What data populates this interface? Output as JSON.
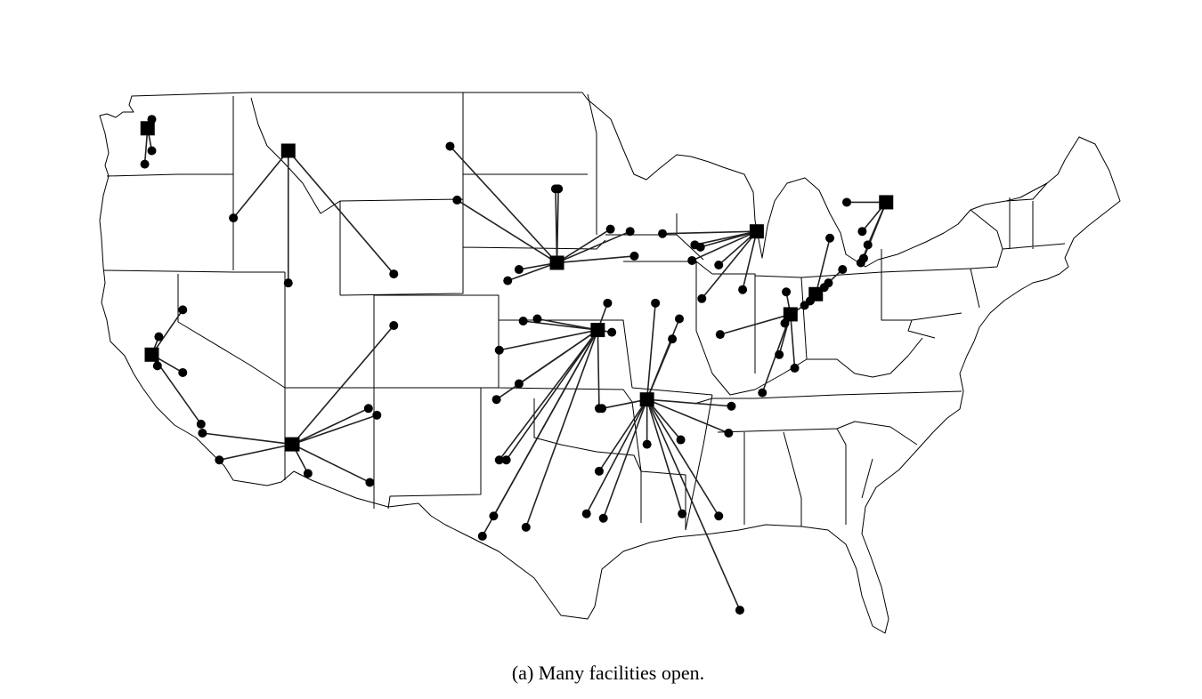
{
  "caption": "(a)  Many facilities open.",
  "colors": {
    "facility": "#000000",
    "customer": "#000000",
    "link": "#222222",
    "border": "#000000"
  },
  "facilities": [
    {
      "id": "F1",
      "lon": -122.3,
      "lat": 47.6
    },
    {
      "id": "F2",
      "lon": -112.3,
      "lat": 46.6
    },
    {
      "id": "F3",
      "lon": -122.0,
      "lat": 37.5
    },
    {
      "id": "F4",
      "lon": -112.0,
      "lat": 33.5
    },
    {
      "id": "F5",
      "lon": -93.2,
      "lat": 41.6
    },
    {
      "id": "F6",
      "lon": -90.3,
      "lat": 38.6
    },
    {
      "id": "F7",
      "lon": -86.8,
      "lat": 35.5
    },
    {
      "id": "F8",
      "lon": -79.0,
      "lat": 43.0
    },
    {
      "id": "F9",
      "lon": -76.6,
      "lat": 39.3
    },
    {
      "id": "F10",
      "lon": -74.8,
      "lat": 40.2
    },
    {
      "id": "F11",
      "lon": -69.8,
      "lat": 44.3
    }
  ],
  "customers": [
    {
      "f": "F1",
      "lon": -122.0,
      "lat": 48.0
    },
    {
      "f": "F1",
      "lon": -122.0,
      "lat": 46.6
    },
    {
      "f": "F1",
      "lon": -122.5,
      "lat": 46.0
    },
    {
      "f": "F2",
      "lon": -116.2,
      "lat": 43.6
    },
    {
      "f": "F2",
      "lon": -112.3,
      "lat": 40.7
    },
    {
      "f": "F2",
      "lon": -104.8,
      "lat": 41.1
    },
    {
      "f": "F3",
      "lon": -121.5,
      "lat": 38.3
    },
    {
      "f": "F3",
      "lon": -119.8,
      "lat": 39.5
    },
    {
      "f": "F3",
      "lon": -121.6,
      "lat": 37.0
    },
    {
      "f": "F3",
      "lon": -119.8,
      "lat": 36.7
    },
    {
      "f": "F3",
      "lon": -118.5,
      "lat": 34.4
    },
    {
      "f": "F4",
      "lon": -118.4,
      "lat": 34.0
    },
    {
      "f": "F4",
      "lon": -117.2,
      "lat": 32.8
    },
    {
      "f": "F4",
      "lon": -104.8,
      "lat": 38.8
    },
    {
      "f": "F4",
      "lon": -106.6,
      "lat": 35.1
    },
    {
      "f": "F4",
      "lon": -106.0,
      "lat": 34.8
    },
    {
      "f": "F4",
      "lon": -106.5,
      "lat": 31.8
    },
    {
      "f": "F4",
      "lon": -110.9,
      "lat": 32.2
    },
    {
      "f": "F5",
      "lon": -100.8,
      "lat": 46.8
    },
    {
      "f": "F5",
      "lon": -100.3,
      "lat": 44.4
    },
    {
      "f": "F5",
      "lon": -93.3,
      "lat": 44.9
    },
    {
      "f": "F5",
      "lon": -93.1,
      "lat": 44.9
    },
    {
      "f": "F5",
      "lon": -89.4,
      "lat": 43.1
    },
    {
      "f": "F5",
      "lon": -88.0,
      "lat": 43.0
    },
    {
      "f": "F5",
      "lon": -87.7,
      "lat": 41.9
    },
    {
      "f": "F5",
      "lon": -95.9,
      "lat": 41.3
    },
    {
      "f": "F5",
      "lon": -96.7,
      "lat": 40.8
    },
    {
      "f": "F6",
      "lon": -94.6,
      "lat": 39.1
    },
    {
      "f": "F6",
      "lon": -95.6,
      "lat": 39.0
    },
    {
      "f": "F6",
      "lon": -89.6,
      "lat": 39.8
    },
    {
      "f": "F6",
      "lon": -89.3,
      "lat": 38.5
    },
    {
      "f": "F6",
      "lon": -97.3,
      "lat": 37.7
    },
    {
      "f": "F6",
      "lon": -97.5,
      "lat": 35.5
    },
    {
      "f": "F6",
      "lon": -95.9,
      "lat": 36.2
    },
    {
      "f": "F6",
      "lon": -90.2,
      "lat": 35.1
    },
    {
      "f": "F6",
      "lon": -96.8,
      "lat": 32.8
    },
    {
      "f": "F6",
      "lon": -97.3,
      "lat": 32.8
    },
    {
      "f": "F6",
      "lon": -97.7,
      "lat": 30.3
    },
    {
      "f": "F6",
      "lon": -98.5,
      "lat": 29.4
    },
    {
      "f": "F6",
      "lon": -95.4,
      "lat": 29.8
    },
    {
      "f": "F7",
      "lon": -86.2,
      "lat": 39.8
    },
    {
      "f": "F7",
      "lon": -84.5,
      "lat": 39.1
    },
    {
      "f": "F7",
      "lon": -85.0,
      "lat": 38.2
    },
    {
      "f": "F7",
      "lon": -90.0,
      "lat": 35.1
    },
    {
      "f": "F7",
      "lon": -80.8,
      "lat": 35.2
    },
    {
      "f": "F7",
      "lon": -81.0,
      "lat": 34.0
    },
    {
      "f": "F7",
      "lon": -84.4,
      "lat": 33.7
    },
    {
      "f": "F7",
      "lon": -86.8,
      "lat": 33.5
    },
    {
      "f": "F7",
      "lon": -90.2,
      "lat": 32.3
    },
    {
      "f": "F7",
      "lon": -91.1,
      "lat": 30.4
    },
    {
      "f": "F7",
      "lon": -89.9,
      "lat": 30.2
    },
    {
      "f": "F7",
      "lon": -84.3,
      "lat": 30.4
    },
    {
      "f": "F7",
      "lon": -81.7,
      "lat": 30.3
    },
    {
      "f": "F7",
      "lon": -80.2,
      "lat": 26.1
    },
    {
      "f": "F8",
      "lon": -83.0,
      "lat": 42.3
    },
    {
      "f": "F8",
      "lon": -83.4,
      "lat": 42.4
    },
    {
      "f": "F8",
      "lon": -83.6,
      "lat": 41.7
    },
    {
      "f": "F8",
      "lon": -81.7,
      "lat": 41.5
    },
    {
      "f": "F8",
      "lon": -82.9,
      "lat": 40.0
    },
    {
      "f": "F8",
      "lon": -80.0,
      "lat": 40.4
    },
    {
      "f": "F8",
      "lon": -85.7,
      "lat": 42.9
    },
    {
      "f": "F9",
      "lon": -77.0,
      "lat": 38.9
    },
    {
      "f": "F9",
      "lon": -77.4,
      "lat": 37.5
    },
    {
      "f": "F9",
      "lon": -78.6,
      "lat": 35.8
    },
    {
      "f": "F9",
      "lon": -76.3,
      "lat": 36.9
    },
    {
      "f": "F9",
      "lon": -81.6,
      "lat": 38.4
    },
    {
      "f": "F9",
      "lon": -76.9,
      "lat": 40.3
    },
    {
      "f": "F9",
      "lon": -75.6,
      "lat": 39.7
    },
    {
      "f": "F10",
      "lon": -73.9,
      "lat": 40.7
    },
    {
      "f": "F10",
      "lon": -74.2,
      "lat": 40.5
    },
    {
      "f": "F10",
      "lon": -75.2,
      "lat": 39.9
    },
    {
      "f": "F10",
      "lon": -73.8,
      "lat": 42.7
    },
    {
      "f": "F10",
      "lon": -72.9,
      "lat": 41.3
    },
    {
      "f": "F11",
      "lon": -71.4,
      "lat": 41.8
    },
    {
      "f": "F11",
      "lon": -71.1,
      "lat": 42.4
    },
    {
      "f": "F11",
      "lon": -71.5,
      "lat": 43.0
    },
    {
      "f": "F11",
      "lon": -72.6,
      "lat": 44.3
    },
    {
      "f": "F11",
      "lon": -71.6,
      "lat": 41.6
    }
  ]
}
